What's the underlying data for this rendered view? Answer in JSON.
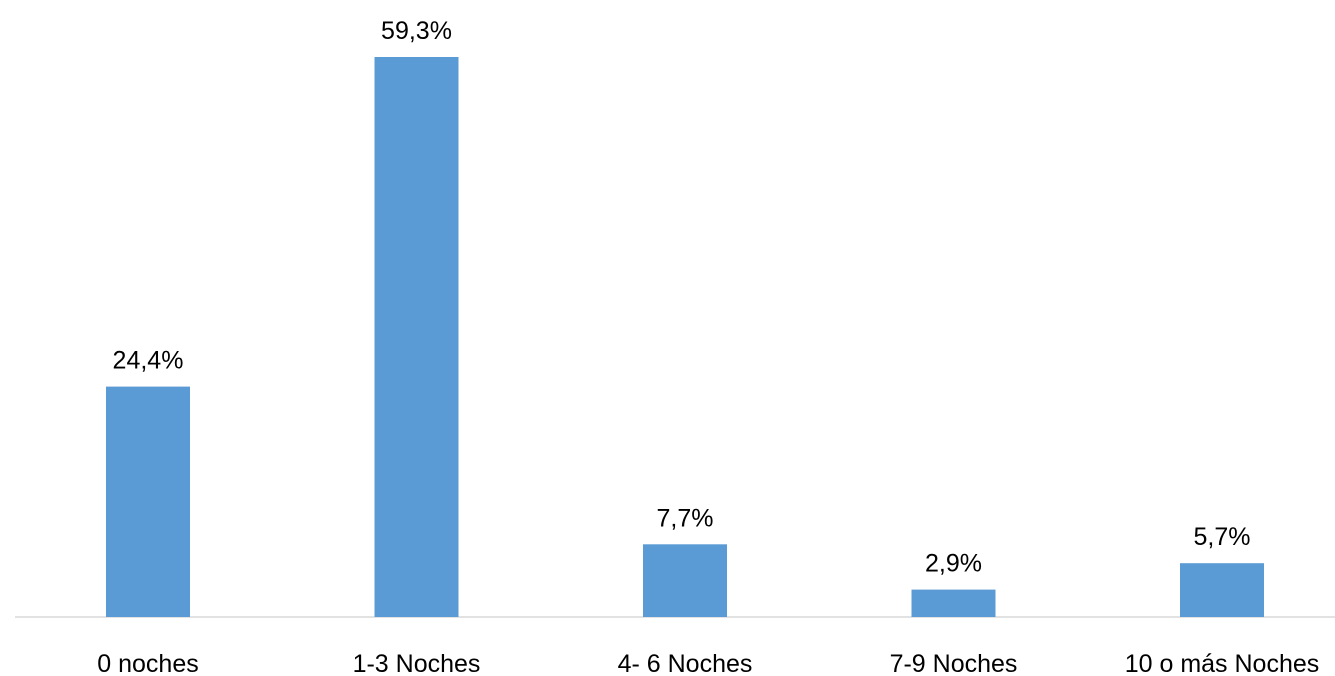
{
  "chart_data": {
    "type": "bar",
    "categories": [
      "0 noches",
      "1-3 Noches",
      "4- 6 Noches",
      "7-9 Noches",
      "10 o más Noches"
    ],
    "values": [
      24.4,
      59.3,
      7.7,
      2.9,
      5.7
    ],
    "data_labels": [
      "24,4%",
      "59,3%",
      "7,7%",
      "2,9%",
      "5,7%"
    ],
    "unit": "%",
    "ylim": [
      0,
      60
    ],
    "grid": false,
    "legend": "none",
    "colors": {
      "bar": "#5B9BD5",
      "axis": "#D9D9D9",
      "text": "#000000"
    }
  }
}
